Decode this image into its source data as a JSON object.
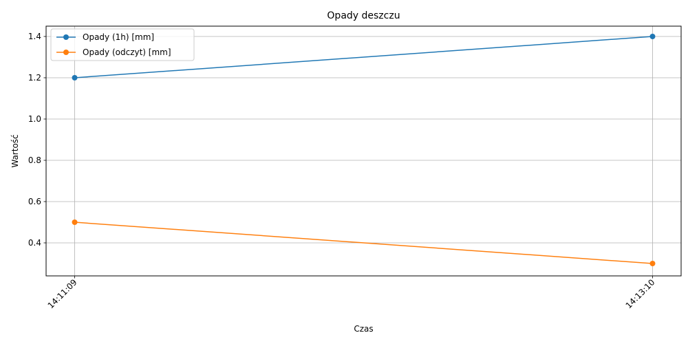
{
  "chart_data": {
    "type": "line",
    "title": "Opady deszczu",
    "xlabel": "Czas",
    "ylabel": "Wartość",
    "categories": [
      "14:11:09",
      "14:13:10"
    ],
    "series": [
      {
        "name": "Opady (1h) [mm]",
        "values": [
          1.2,
          1.4
        ],
        "color": "#1f77b4"
      },
      {
        "name": "Opady (odczyt) [mm]",
        "values": [
          0.5,
          0.3
        ],
        "color": "#ff7f0e"
      }
    ],
    "ylim": [
      0.24,
      1.45
    ],
    "yticks": [
      0.4,
      0.6,
      0.8,
      1.0,
      1.2,
      1.4
    ],
    "ytick_labels": [
      "0.4",
      "0.6",
      "0.8",
      "1.0",
      "1.2",
      "1.4"
    ],
    "grid": true,
    "legend_position": "top-left",
    "marker": "circle"
  }
}
